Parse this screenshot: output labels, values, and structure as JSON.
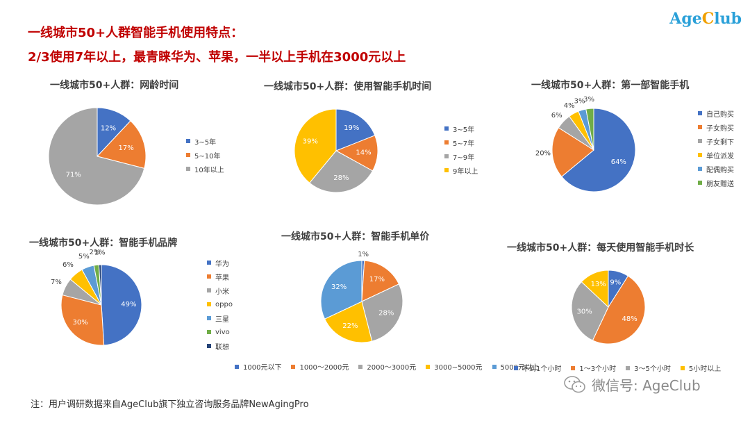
{
  "header": {
    "line1": "一线城市50+人群智能手机使用特点：",
    "line2": "2/3使用7年以上，最青睐华为、苹果，一半以上手机在3000元以上"
  },
  "logo": {
    "part1": "Age",
    "part2": "C",
    "part3": "lub"
  },
  "colors": {
    "blue": "#4472c4",
    "orange": "#ed7d31",
    "gray": "#a5a5a5",
    "yellow": "#ffc000",
    "lightblue": "#5b9bd5",
    "green": "#70ad47",
    "navy": "#264478",
    "headline": "#c00000"
  },
  "chart_data": [
    {
      "type": "pie",
      "title": "一线城市50+人群：网龄时间",
      "categories": [
        "3~5年",
        "5~10年",
        "10年以上"
      ],
      "values": [
        12,
        17,
        71
      ],
      "labels": [
        "12%",
        "17%",
        "71%"
      ],
      "colors": [
        "#4472c4",
        "#ed7d31",
        "#a5a5a5"
      ],
      "legend": "right"
    },
    {
      "type": "pie",
      "title": "一线城市50+人群：使用智能手机时间",
      "categories": [
        "3~5年",
        "5~7年",
        "7~9年",
        "9年以上"
      ],
      "values": [
        19,
        14,
        28,
        39
      ],
      "labels": [
        "19%",
        "14%",
        "28%",
        "39%"
      ],
      "colors": [
        "#4472c4",
        "#ed7d31",
        "#a5a5a5",
        "#ffc000"
      ],
      "legend": "right"
    },
    {
      "type": "pie",
      "title": "一线城市50+人群：第一部智能手机",
      "categories": [
        "自己购买",
        "子女购买",
        "子女剩下",
        "单位派发",
        "配偶购买",
        "朋友赠送"
      ],
      "values": [
        64,
        20,
        6,
        4,
        3,
        3
      ],
      "labels": [
        "64%",
        "20%",
        "6%",
        "4%",
        "3%",
        "3%"
      ],
      "colors": [
        "#4472c4",
        "#ed7d31",
        "#a5a5a5",
        "#ffc000",
        "#5b9bd5",
        "#70ad47"
      ],
      "legend": "right"
    },
    {
      "type": "pie",
      "title": "一线城市50+人群：智能手机品牌",
      "categories": [
        "华为",
        "苹果",
        "小米",
        "oppo",
        "三星",
        "vivo",
        "联想"
      ],
      "values": [
        49,
        30,
        7,
        6,
        5,
        2,
        1
      ],
      "labels": [
        "49%",
        "30%",
        "7%",
        "6%",
        "5%",
        "2%",
        "1%"
      ],
      "colors": [
        "#4472c4",
        "#ed7d31",
        "#a5a5a5",
        "#ffc000",
        "#5b9bd5",
        "#70ad47",
        "#264478"
      ],
      "legend": "right"
    },
    {
      "type": "pie",
      "title": "一线城市50+人群：智能手机单价",
      "categories": [
        "1000元以下",
        "1000～2000元",
        "2000～3000元",
        "3000~5000元",
        "5000元以上"
      ],
      "values": [
        1,
        17,
        28,
        22,
        32
      ],
      "labels": [
        "1%",
        "17%",
        "28%",
        "22%",
        "32%"
      ],
      "colors": [
        "#4472c4",
        "#ed7d31",
        "#a5a5a5",
        "#ffc000",
        "#5b9bd5"
      ],
      "legend": "bottom"
    },
    {
      "type": "pie",
      "title": "一线城市50+人群：每天使用智能手机时长",
      "categories": [
        "不到1个小时",
        "1～3个小时",
        "3～5个小时",
        "5小时以上"
      ],
      "values": [
        9,
        48,
        30,
        13
      ],
      "labels": [
        "9%",
        "48%",
        "30%",
        "13%"
      ],
      "colors": [
        "#4472c4",
        "#ed7d31",
        "#a5a5a5",
        "#ffc000"
      ],
      "legend": "bottom"
    }
  ],
  "footer": {
    "note": "注：用户调研数据来自AgeClub旗下独立咨询服务品牌NewAgingPro",
    "watermark": "微信号: AgeClub"
  }
}
